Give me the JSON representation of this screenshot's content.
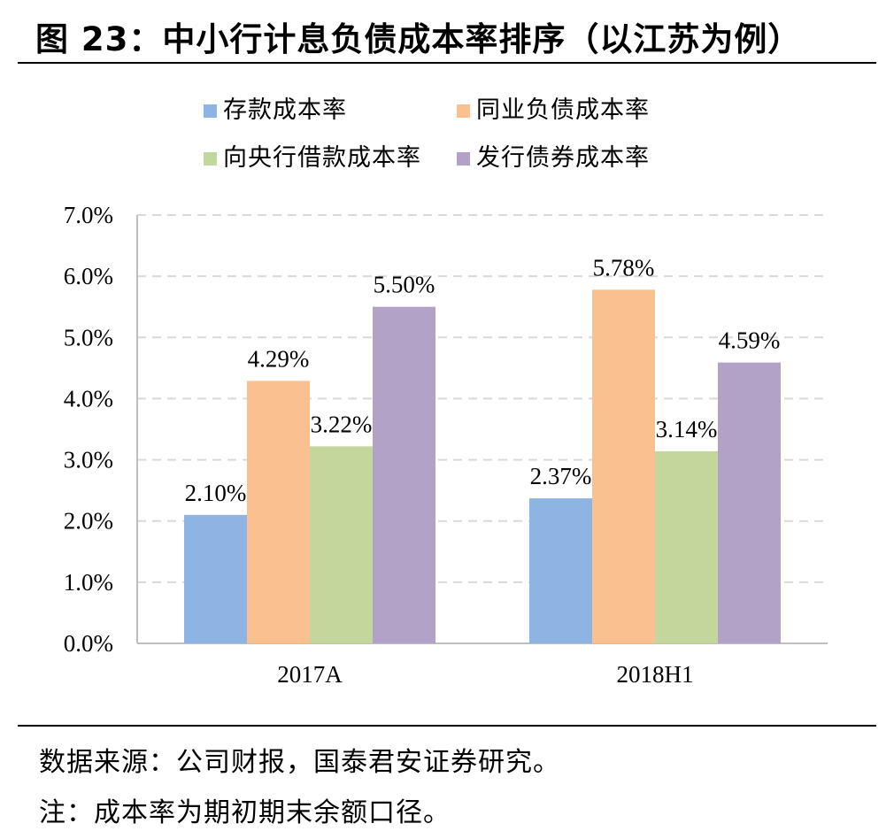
{
  "header": {
    "title": "图 23：中小行计息负债成本率排序（以江苏为例）"
  },
  "footer": {
    "source": "数据来源：公司财报，国泰君安证券研究。",
    "note": "注：成本率为期初期末余额口径。"
  },
  "colors": {
    "deposit": "#8EB4E3",
    "interbank": "#FAC090",
    "central_bank": "#C3D69B",
    "bond": "#B3A2C7",
    "grid": "#D9D9D9",
    "axis": "#BFBFBF"
  },
  "chart_data": {
    "type": "bar",
    "title": "",
    "xlabel": "",
    "ylabel": "",
    "categories": [
      "2017A",
      "2018H1"
    ],
    "ylim": [
      0,
      7
    ],
    "yticks": [
      0,
      1,
      2,
      3,
      4,
      5,
      6,
      7
    ],
    "ytick_labels": [
      "0.0%",
      "1.0%",
      "2.0%",
      "3.0%",
      "4.0%",
      "5.0%",
      "6.0%",
      "7.0%"
    ],
    "grid": true,
    "legend_position": "top",
    "series": [
      {
        "name": "存款成本率",
        "color_key": "deposit",
        "values": [
          2.1,
          2.37
        ],
        "labels": [
          "2.10%",
          "2.37%"
        ]
      },
      {
        "name": "同业负债成本率",
        "color_key": "interbank",
        "values": [
          4.29,
          5.78
        ],
        "labels": [
          "4.29%",
          "5.78%"
        ]
      },
      {
        "name": "向央行借款成本率",
        "color_key": "central_bank",
        "values": [
          3.22,
          3.14
        ],
        "labels": [
          "3.22%",
          "3.14%"
        ]
      },
      {
        "name": "发行债券成本率",
        "color_key": "bond",
        "values": [
          5.5,
          4.59
        ],
        "labels": [
          "5.50%",
          "4.59%"
        ]
      }
    ]
  }
}
